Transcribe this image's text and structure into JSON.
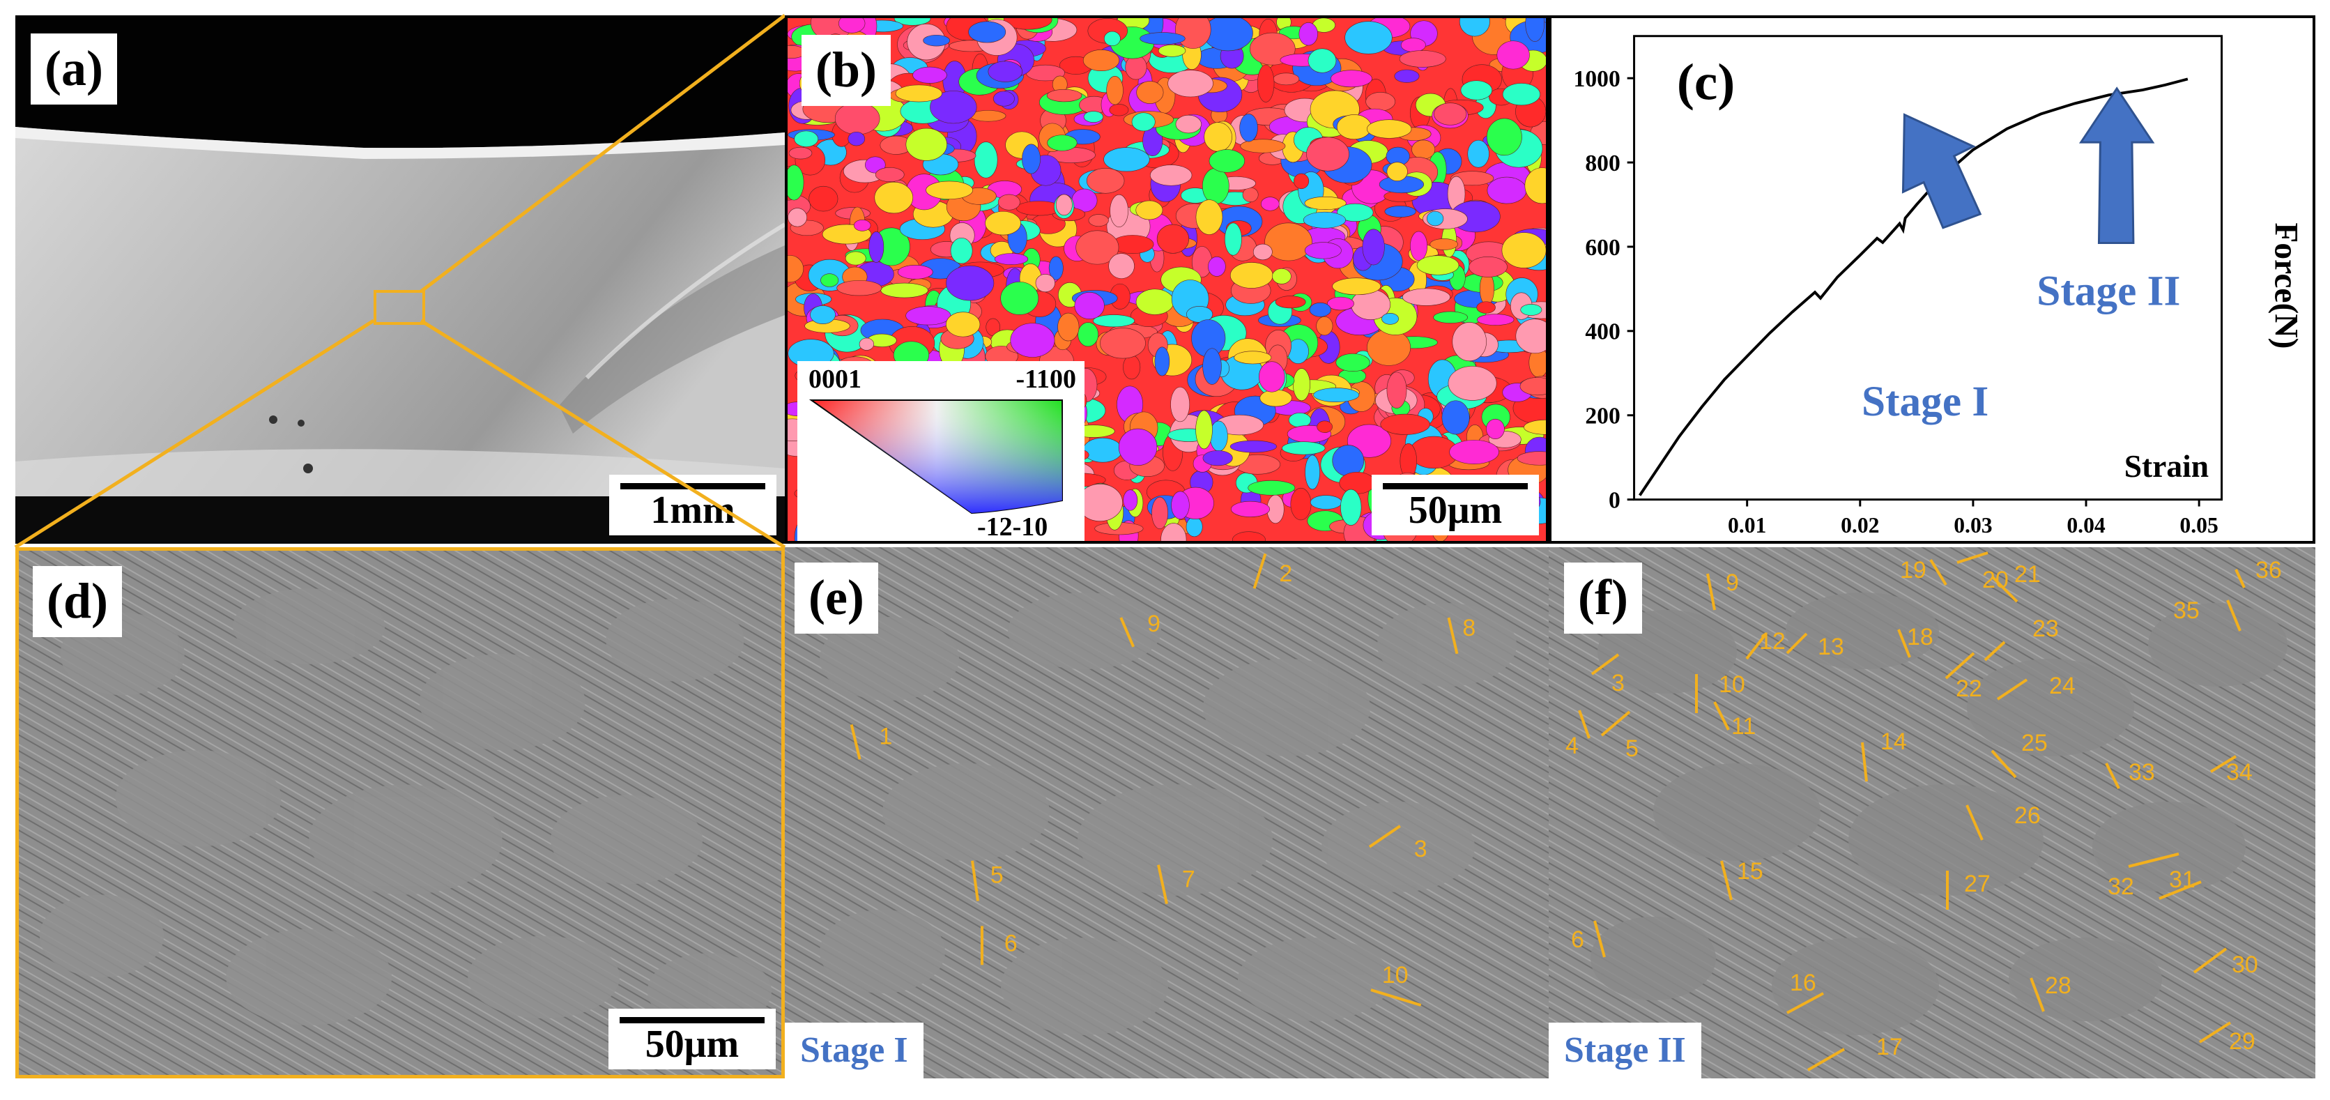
{
  "panels": {
    "a": {
      "label": "(a)",
      "scale": "1mm"
    },
    "b": {
      "label": "(b)",
      "scale": "50μm",
      "legend": {
        "top_left": "0001",
        "top_right": "-1100",
        "bottom": "-12-10"
      }
    },
    "c": {
      "label": "(c)",
      "stage1": "Stage I",
      "stage2": "Stage II"
    },
    "d": {
      "label": "(d)",
      "scale": "50μm"
    },
    "e": {
      "label": "(e)",
      "stage": "Stage I",
      "twins": [
        "1",
        "2",
        "3",
        "5",
        "6",
        "7",
        "8",
        "9",
        "10"
      ]
    },
    "f": {
      "label": "(f)",
      "stage": "Stage II",
      "twins": [
        "3",
        "4",
        "5",
        "6",
        "9",
        "10",
        "11",
        "12",
        "13",
        "14",
        "15",
        "16",
        "17",
        "18",
        "19",
        "20",
        "21",
        "22",
        "23",
        "24",
        "25",
        "26",
        "27",
        "28",
        "29",
        "30",
        "31",
        "32",
        "33",
        "34",
        "35",
        "36"
      ]
    }
  },
  "colors": {
    "highlight": "#f2b01e",
    "arrow": "#4472c4",
    "stage_text": "#4472c4"
  },
  "chart_data": {
    "type": "line",
    "title": "",
    "xlabel": "Strain",
    "ylabel": "Force(N)",
    "xlim": [
      0,
      0.052
    ],
    "ylim": [
      0,
      1100
    ],
    "xticks": [
      0.01,
      0.02,
      0.03,
      0.04,
      0.05
    ],
    "yticks": [
      0,
      200,
      400,
      600,
      800,
      1000
    ],
    "series": [
      {
        "x": [
          0.0005,
          0.002,
          0.004,
          0.006,
          0.008,
          0.01,
          0.012,
          0.014,
          0.016,
          0.0165,
          0.018,
          0.02,
          0.0215,
          0.022,
          0.0235,
          0.0238,
          0.024,
          0.025,
          0.027,
          0.03,
          0.033,
          0.036,
          0.039,
          0.042,
          0.045,
          0.047,
          0.049
        ],
        "y": [
          10,
          70,
          150,
          220,
          285,
          340,
          395,
          445,
          492,
          478,
          528,
          580,
          620,
          610,
          655,
          640,
          668,
          700,
          760,
          830,
          880,
          915,
          940,
          960,
          972,
          984,
          998
        ]
      }
    ],
    "annotations": [
      "Stage I",
      "Stage II"
    ]
  }
}
